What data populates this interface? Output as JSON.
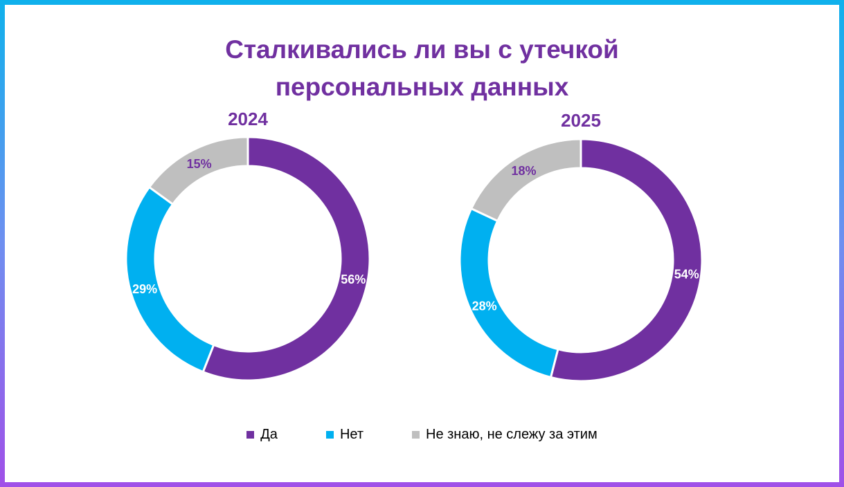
{
  "chart_data": [
    {
      "type": "pie",
      "subtitle": "2024",
      "categories": [
        "Да",
        "Нет",
        "Не знаю, не слежу за этим"
      ],
      "values": [
        56,
        29,
        15
      ],
      "labels": [
        "56%",
        "29%",
        "15%"
      ],
      "colors": [
        "#7030a0",
        "#00b0f0",
        "#bfbfbf"
      ],
      "label_colors": [
        "#ffffff",
        "#ffffff",
        "#7030a0"
      ]
    },
    {
      "type": "pie",
      "subtitle": "2025",
      "categories": [
        "Да",
        "Нет",
        "Не знаю, не слежу за этим"
      ],
      "values": [
        54,
        28,
        18
      ],
      "labels": [
        "54%",
        "28%",
        "18%"
      ],
      "colors": [
        "#7030a0",
        "#00b0f0",
        "#bfbfbf"
      ],
      "label_colors": [
        "#ffffff",
        "#ffffff",
        "#7030a0"
      ]
    }
  ],
  "title": {
    "line1": "Сталкивались ли вы с утечкой",
    "line2": "персональных данных"
  },
  "legend": {
    "placement": "bottom",
    "items": [
      {
        "label": "Да",
        "color": "#7030a0"
      },
      {
        "label": "Нет",
        "color": "#00b0f0"
      },
      {
        "label": "Не знаю, не слежу за этим",
        "color": "#bfbfbf"
      }
    ]
  },
  "colors": {
    "title": "#7030a0",
    "frame_top": "#0fb1ec",
    "frame_bottom": "#a050e8"
  }
}
